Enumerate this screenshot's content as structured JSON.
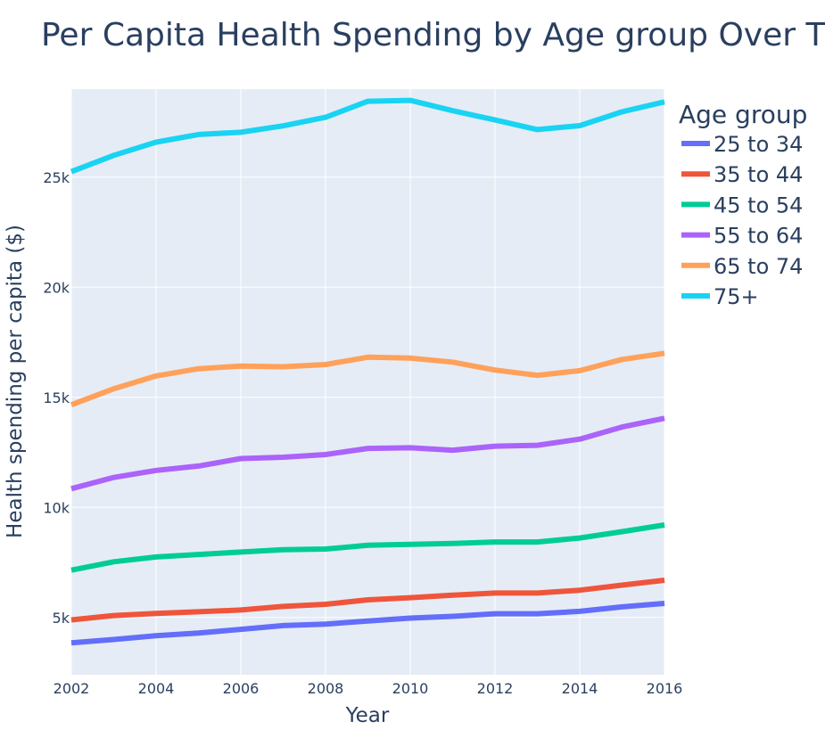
{
  "chart_data": {
    "type": "line",
    "title": "Per Capita Health Spending by Age group Over Time",
    "xlabel": "Year",
    "ylabel": "Health spending per capita ($)",
    "x": [
      2002,
      2003,
      2004,
      2005,
      2006,
      2007,
      2008,
      2009,
      2010,
      2011,
      2012,
      2013,
      2014,
      2015,
      2016
    ],
    "xlim": [
      2002,
      2016
    ],
    "ylim": [
      2400,
      29000
    ],
    "x_ticks": [
      2002,
      2004,
      2006,
      2008,
      2010,
      2012,
      2014,
      2016
    ],
    "y_ticks": [
      5000,
      10000,
      15000,
      20000,
      25000
    ],
    "y_tick_labels": [
      "5k",
      "10k",
      "15k",
      "20k",
      "25k"
    ],
    "grid": true,
    "legend": {
      "title": "Age group",
      "placement": "top-right outside plot"
    },
    "series": [
      {
        "name": "25 to 34",
        "color": "#636efa",
        "values": [
          3850,
          4000,
          4170,
          4290,
          4460,
          4630,
          4700,
          4840,
          4970,
          5050,
          5170,
          5170,
          5280,
          5480,
          5640
        ]
      },
      {
        "name": "35 to 44",
        "color": "#ef553b",
        "values": [
          4890,
          5090,
          5180,
          5260,
          5340,
          5500,
          5600,
          5800,
          5900,
          6010,
          6110,
          6110,
          6240,
          6470,
          6690
        ]
      },
      {
        "name": "45 to 54",
        "color": "#00cc96",
        "values": [
          7150,
          7530,
          7750,
          7860,
          7970,
          8080,
          8110,
          8280,
          8320,
          8360,
          8430,
          8430,
          8610,
          8900,
          9200
        ]
      },
      {
        "name": "55 to 64",
        "color": "#ab63fa",
        "values": [
          10850,
          11360,
          11680,
          11880,
          12220,
          12280,
          12400,
          12680,
          12710,
          12600,
          12780,
          12820,
          13100,
          13650,
          14050
        ]
      },
      {
        "name": "65 to 74",
        "color": "#ffa15a",
        "values": [
          14660,
          15390,
          15970,
          16300,
          16420,
          16390,
          16490,
          16820,
          16780,
          16600,
          16240,
          16000,
          16210,
          16720,
          17000
        ]
      },
      {
        "name": "75+",
        "color": "#19d3f3",
        "values": [
          25250,
          25990,
          26590,
          26940,
          27040,
          27330,
          27720,
          28450,
          28490,
          28020,
          27600,
          27160,
          27340,
          27970,
          28420
        ]
      }
    ]
  }
}
